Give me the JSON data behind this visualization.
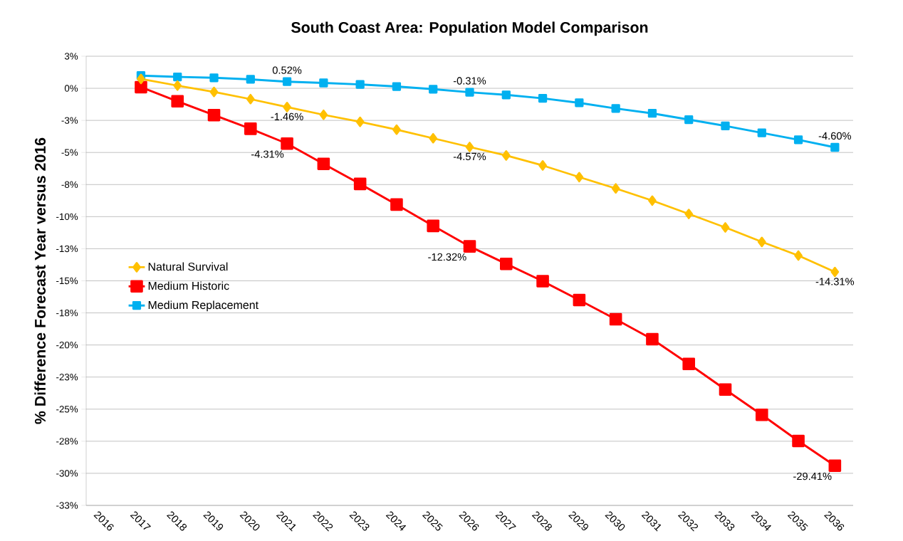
{
  "chart_data": {
    "type": "line",
    "title": "South Coast Area: Population Model Comparison",
    "ylabel": "% Difference Forecast Year versus 2016",
    "categories": [
      "2016",
      "2017",
      "2018",
      "2019",
      "2020",
      "2021",
      "2022",
      "2023",
      "2024",
      "2025",
      "2026",
      "2027",
      "2028",
      "2029",
      "2030",
      "2031",
      "2032",
      "2033",
      "2034",
      "2035",
      "2036"
    ],
    "series": [
      {
        "name": "Natural Survival",
        "color": "#ffc000",
        "marker": "diamond",
        "values": [
          null,
          0.73,
          0.21,
          -0.28,
          -0.84,
          -1.46,
          -2.06,
          -2.61,
          -3.22,
          -3.89,
          -4.57,
          -5.23,
          -6.01,
          -6.92,
          -7.8,
          -8.75,
          -9.79,
          -10.84,
          -11.97,
          -13.03,
          -14.31
        ],
        "value_labels": [
          null,
          null,
          null,
          null,
          null,
          "-1.46%",
          null,
          null,
          null,
          null,
          "-4.57%",
          null,
          null,
          null,
          null,
          null,
          null,
          null,
          null,
          null,
          "-14.31%"
        ]
      },
      {
        "name": "Medium Historic",
        "color": "#ff0000",
        "marker": "square",
        "values": [
          null,
          0.09,
          -1.01,
          -2.09,
          -3.15,
          -4.31,
          -5.89,
          -7.45,
          -9.06,
          -10.72,
          -12.32,
          -13.68,
          -15.03,
          -16.5,
          -18.0,
          -19.55,
          -21.48,
          -23.47,
          -25.44,
          -27.48,
          -29.41
        ],
        "value_labels": [
          null,
          null,
          null,
          null,
          null,
          "-4.31%",
          null,
          null,
          null,
          null,
          "-12.32%",
          null,
          null,
          null,
          null,
          null,
          null,
          null,
          null,
          null,
          "-29.41%"
        ]
      },
      {
        "name": "Medium Replacement",
        "color": "#00b0f0",
        "marker": "square",
        "values": [
          null,
          0.99,
          0.89,
          0.82,
          0.7,
          0.52,
          0.42,
          0.3,
          0.14,
          -0.07,
          -0.31,
          -0.51,
          -0.78,
          -1.13,
          -1.57,
          -1.95,
          -2.44,
          -2.93,
          -3.47,
          -4.01,
          -4.6
        ],
        "value_labels": [
          null,
          null,
          null,
          null,
          null,
          "0.52%",
          null,
          null,
          null,
          null,
          "-0.31%",
          null,
          null,
          null,
          null,
          null,
          null,
          null,
          null,
          null,
          "-4.60%"
        ]
      }
    ],
    "ylim": [
      -32.5,
      2.5
    ],
    "yticks": [
      {
        "value": 2.5,
        "label": "3%"
      },
      {
        "value": 0,
        "label": "0%"
      },
      {
        "value": -2.5,
        "label": "-3%"
      },
      {
        "value": -5,
        "label": "-5%"
      },
      {
        "value": -7.5,
        "label": "-8%"
      },
      {
        "value": -10,
        "label": "-10%"
      },
      {
        "value": -12.5,
        "label": "-13%"
      },
      {
        "value": -15,
        "label": "-15%"
      },
      {
        "value": -17.5,
        "label": "-18%"
      },
      {
        "value": -20,
        "label": "-20%"
      },
      {
        "value": -22.5,
        "label": "-23%"
      },
      {
        "value": -25,
        "label": "-25%"
      },
      {
        "value": -27.5,
        "label": "-28%"
      },
      {
        "value": -30,
        "label": "-30%"
      },
      {
        "value": -32.5,
        "label": "-33%"
      }
    ],
    "grid": "y",
    "legend": "left",
    "line_style": "solid"
  }
}
